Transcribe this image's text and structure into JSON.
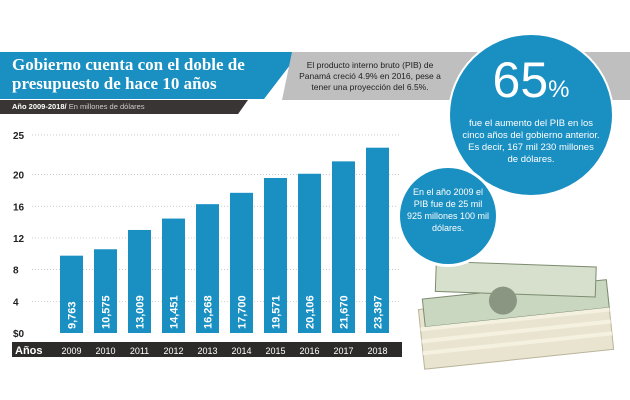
{
  "header": {
    "title": "Gobierno cuenta con el doble de presupuesto de hace 10 años",
    "subtitle_bold": "Año 2009-2018/",
    "subtitle_light": " En millones de dólares",
    "note": "El producto interno bruto (PIB) de Panamá creció 4.9% en 2016, pese a tener una proyección del 6.5%."
  },
  "callouts": {
    "big_number": "65",
    "big_unit": "%",
    "big_text": "fue el aumento del PIB en los cinco años del gobierno anterior. Es decir, 167 mil 230 millones de dólares.",
    "small_text": "En el año 2009 el PIB fue de 25 mil 925 millones 100 mil dólares."
  },
  "colors": {
    "bar": "#1a8fc2",
    "dark": "#2d2a2a",
    "grid": "#bbbbbb"
  },
  "chart_data": {
    "type": "bar",
    "title": "Gobierno cuenta con el doble de presupuesto de hace 10 años",
    "xlabel": "Años",
    "ylabel": "",
    "categories": [
      "2009",
      "2010",
      "2011",
      "2012",
      "2013",
      "2014",
      "2015",
      "2016",
      "2017",
      "2018"
    ],
    "values": [
      9763,
      10575,
      13009,
      14451,
      16268,
      17700,
      19571,
      20106,
      21670,
      23397
    ],
    "value_labels": [
      "9,763",
      "10,575",
      "13,009",
      "14,451",
      "16,268",
      "17,700",
      "19,571",
      "20,106",
      "21,670",
      "23,397"
    ],
    "yticks": [
      {
        "v": 0,
        "label": "$0"
      },
      {
        "v": 4,
        "label": "4"
      },
      {
        "v": 8,
        "label": "8"
      },
      {
        "v": 12,
        "label": "12"
      },
      {
        "v": 16,
        "label": "16"
      },
      {
        "v": 20,
        "label": "20"
      },
      {
        "v": 25,
        "label": "25"
      }
    ],
    "ylim": [
      0,
      25
    ],
    "grid": true
  }
}
